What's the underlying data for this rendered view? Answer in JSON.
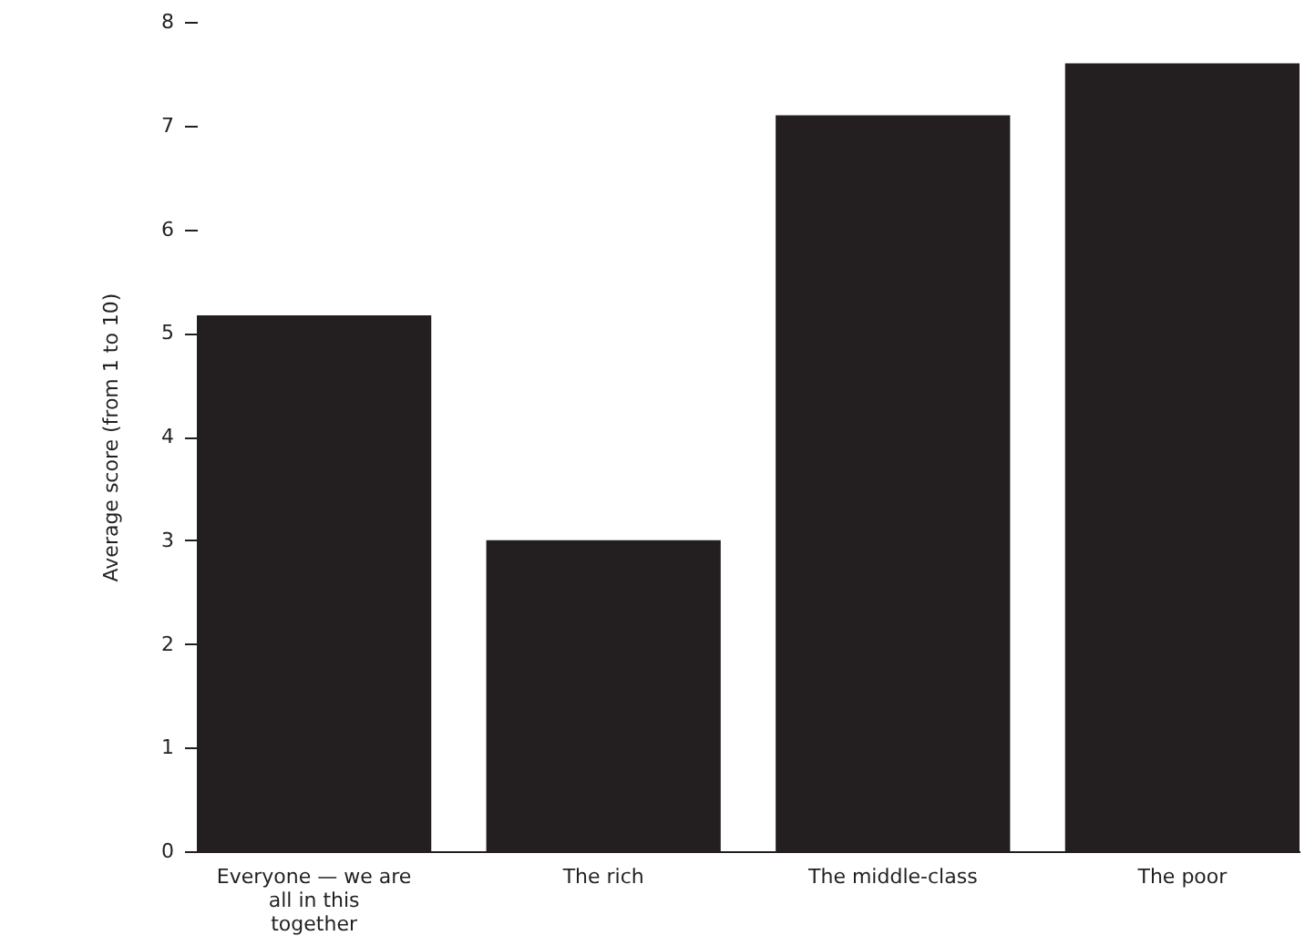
{
  "chart_data": {
    "type": "bar",
    "ylabel": "Average score (from 1 to 10)",
    "categories": [
      "Everyone — we are all in this together",
      "The rich",
      "The middle-class",
      "The poor"
    ],
    "values": [
      5.17,
      3.0,
      7.1,
      7.6
    ],
    "color": "#231f20",
    "ylim": [
      0,
      8
    ],
    "yticks": [
      0,
      1,
      2,
      3,
      4,
      5,
      6,
      7,
      8
    ],
    "grid": false
  }
}
